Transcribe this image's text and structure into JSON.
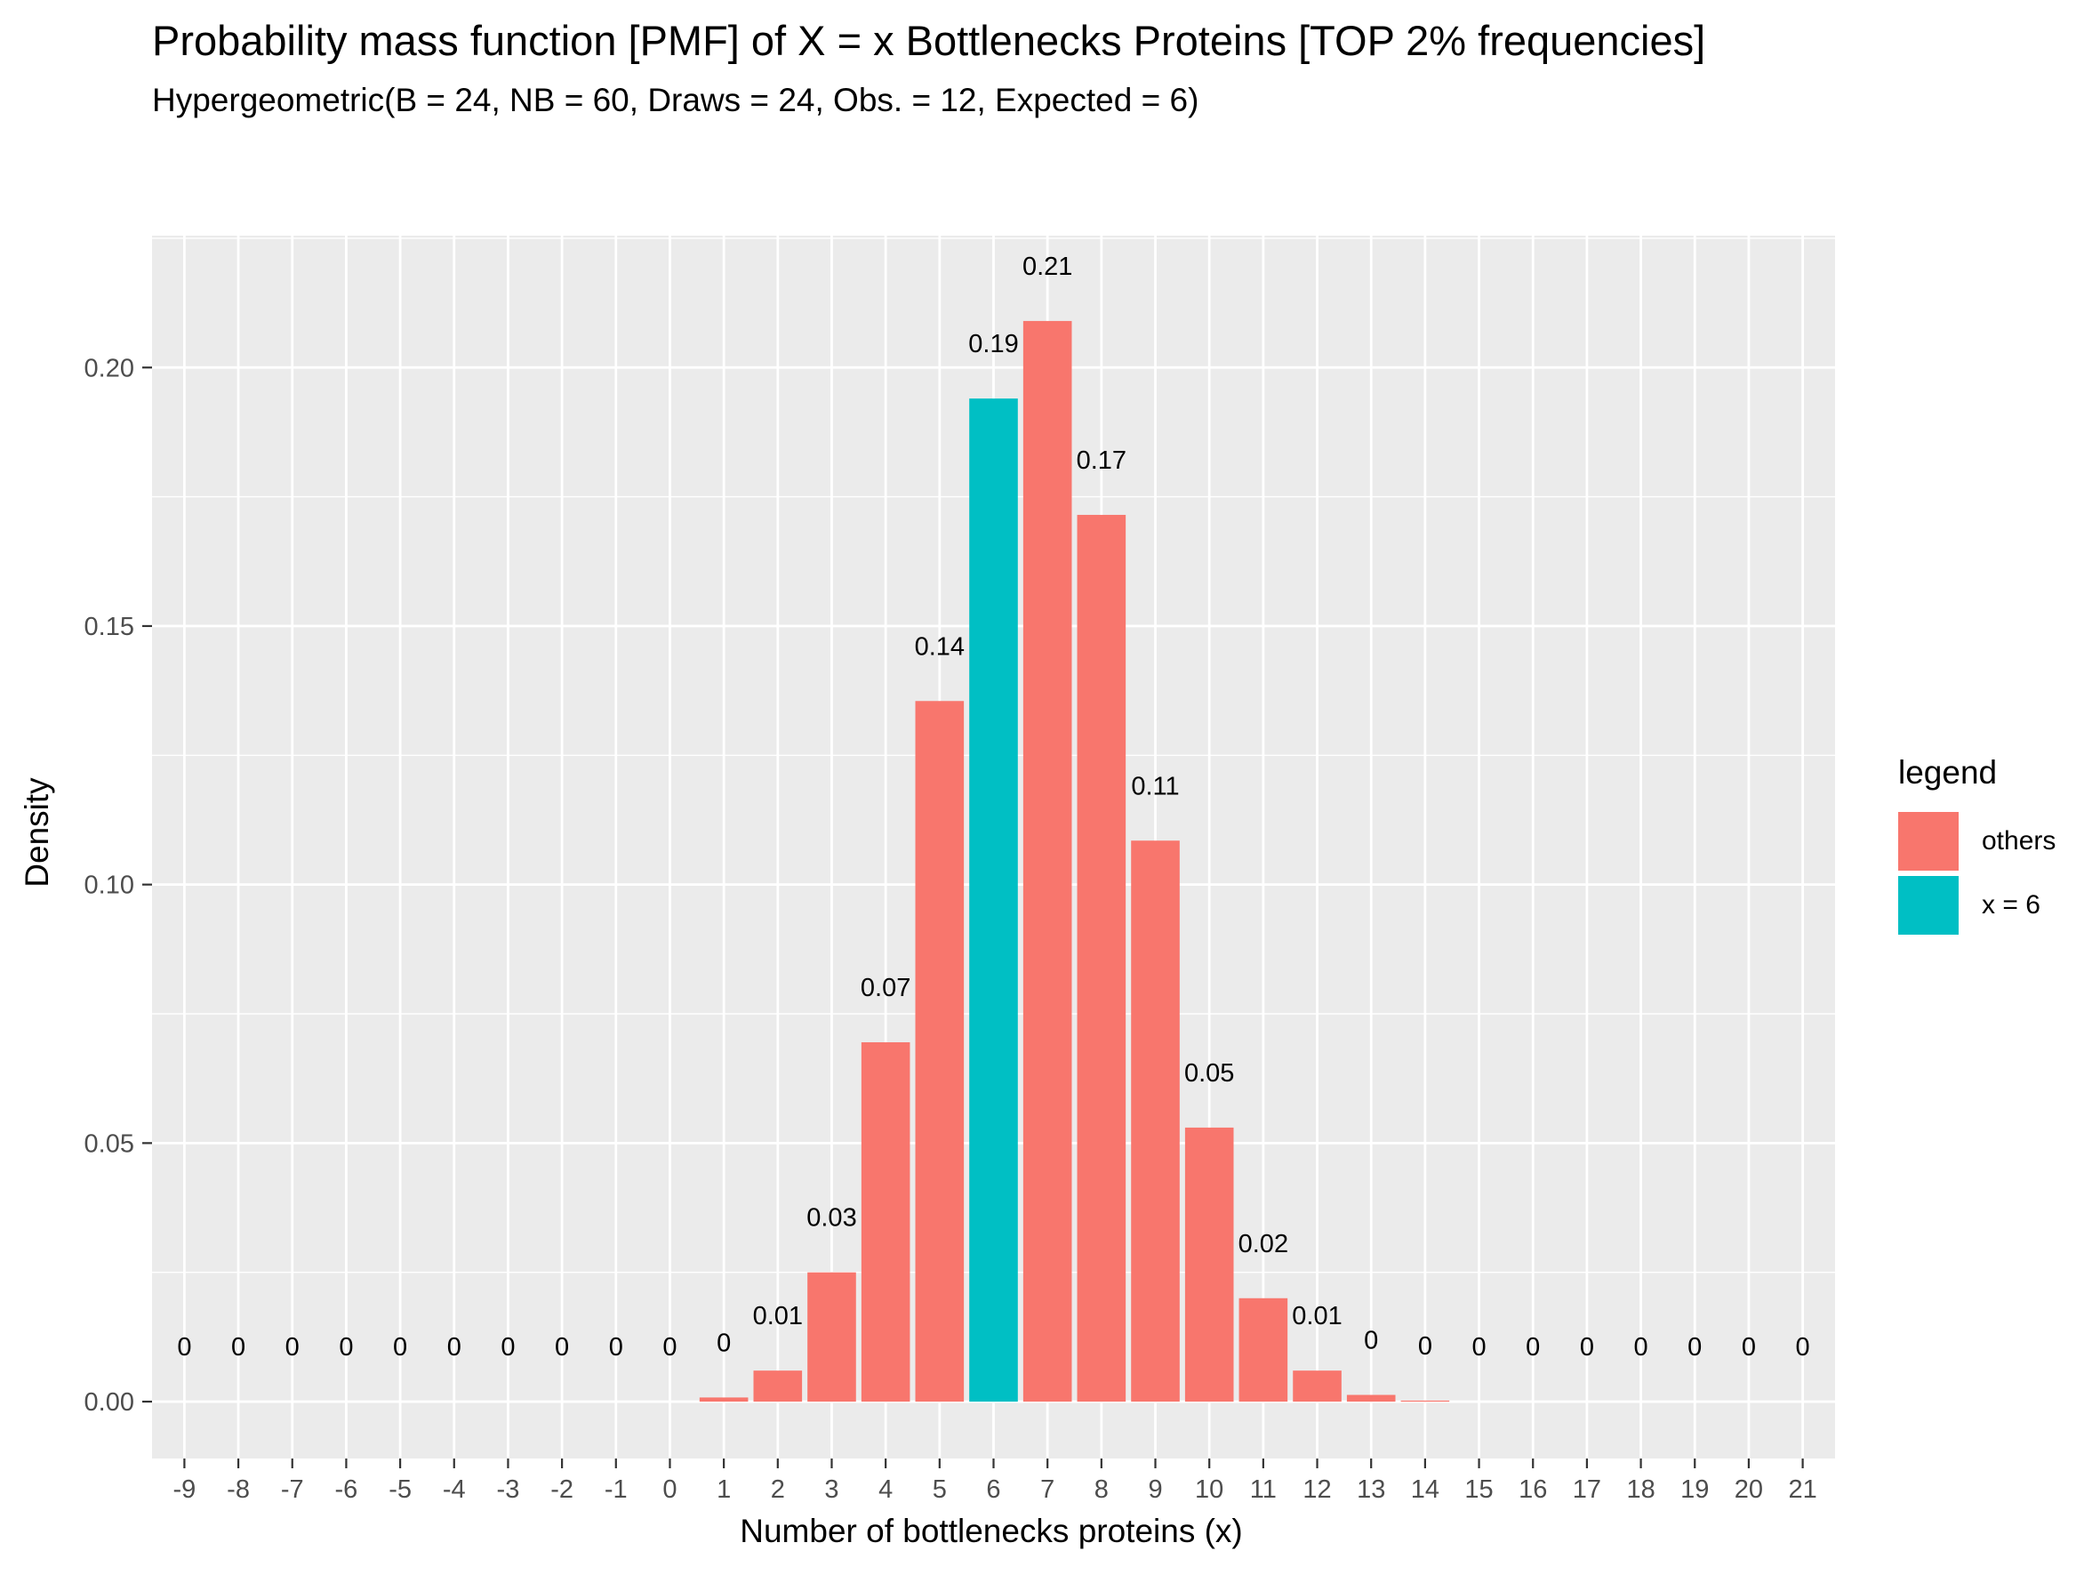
{
  "chart_data": {
    "type": "bar",
    "title": "Probability mass function [PMF] of X = x Bottlenecks Proteins [TOP 2% frequencies]",
    "subtitle": "Hypergeometric(B = 24, NB = 60, Draws = 24, Obs. = 12, Expected = 6)",
    "xlabel": "Number of bottlenecks proteins (x)",
    "ylabel": "Density",
    "ylim": [
      -0.011,
      0.2255
    ],
    "yticks": [
      0.0,
      0.05,
      0.1,
      0.15,
      0.2
    ],
    "ytick_labels": [
      "0.00",
      "0.05",
      "0.10",
      "0.15",
      "0.20"
    ],
    "x": [
      -9,
      -8,
      -7,
      -6,
      -5,
      -4,
      -3,
      -2,
      -1,
      0,
      1,
      2,
      3,
      4,
      5,
      6,
      7,
      8,
      9,
      10,
      11,
      12,
      13,
      14,
      15,
      16,
      17,
      18,
      19,
      20,
      21
    ],
    "x_tick_labels": [
      "-9",
      "-8",
      "-7",
      "-6",
      "-5",
      "-4",
      "-3",
      "-2",
      "-1",
      "0",
      "1",
      "2",
      "3",
      "4",
      "5",
      "6",
      "7",
      "8",
      "9",
      "10",
      "11",
      "12",
      "13",
      "14",
      "15",
      "16",
      "17",
      "18",
      "19",
      "20",
      "21"
    ],
    "values": [
      0,
      0,
      0,
      0,
      0,
      0,
      0,
      0,
      0,
      0,
      0.0008,
      0.006,
      0.025,
      0.0695,
      0.1355,
      0.194,
      0.209,
      0.1715,
      0.1085,
      0.053,
      0.02,
      0.006,
      0.0013,
      0.0002,
      0,
      0,
      0,
      0,
      0,
      0,
      0
    ],
    "data_labels": [
      "0",
      "0",
      "0",
      "0",
      "0",
      "0",
      "0",
      "0",
      "0",
      "0",
      "0",
      "0.01",
      "0.03",
      "0.07",
      "0.14",
      "0.19",
      "0.21",
      "0.17",
      "0.11",
      "0.05",
      "0.02",
      "0.01",
      "0",
      "0",
      "0",
      "0",
      "0",
      "0",
      "0",
      "0",
      "0"
    ],
    "groups": [
      "others",
      "others",
      "others",
      "others",
      "others",
      "others",
      "others",
      "others",
      "others",
      "others",
      "others",
      "others",
      "others",
      "others",
      "others",
      "x = 6",
      "others",
      "others",
      "others",
      "others",
      "others",
      "others",
      "others",
      "others",
      "others",
      "others",
      "others",
      "others",
      "others",
      "others",
      "others"
    ],
    "legend": {
      "title": "legend",
      "placement": "right",
      "entries": [
        {
          "label": "others",
          "color": "#F8766D"
        },
        {
          "label": "x = 6",
          "color": "#00BFC4"
        }
      ]
    },
    "grid": true,
    "colors": {
      "panel": "#EBEBEB",
      "grid": "#FFFFFF",
      "axis_text": "#4D4D4D"
    }
  }
}
